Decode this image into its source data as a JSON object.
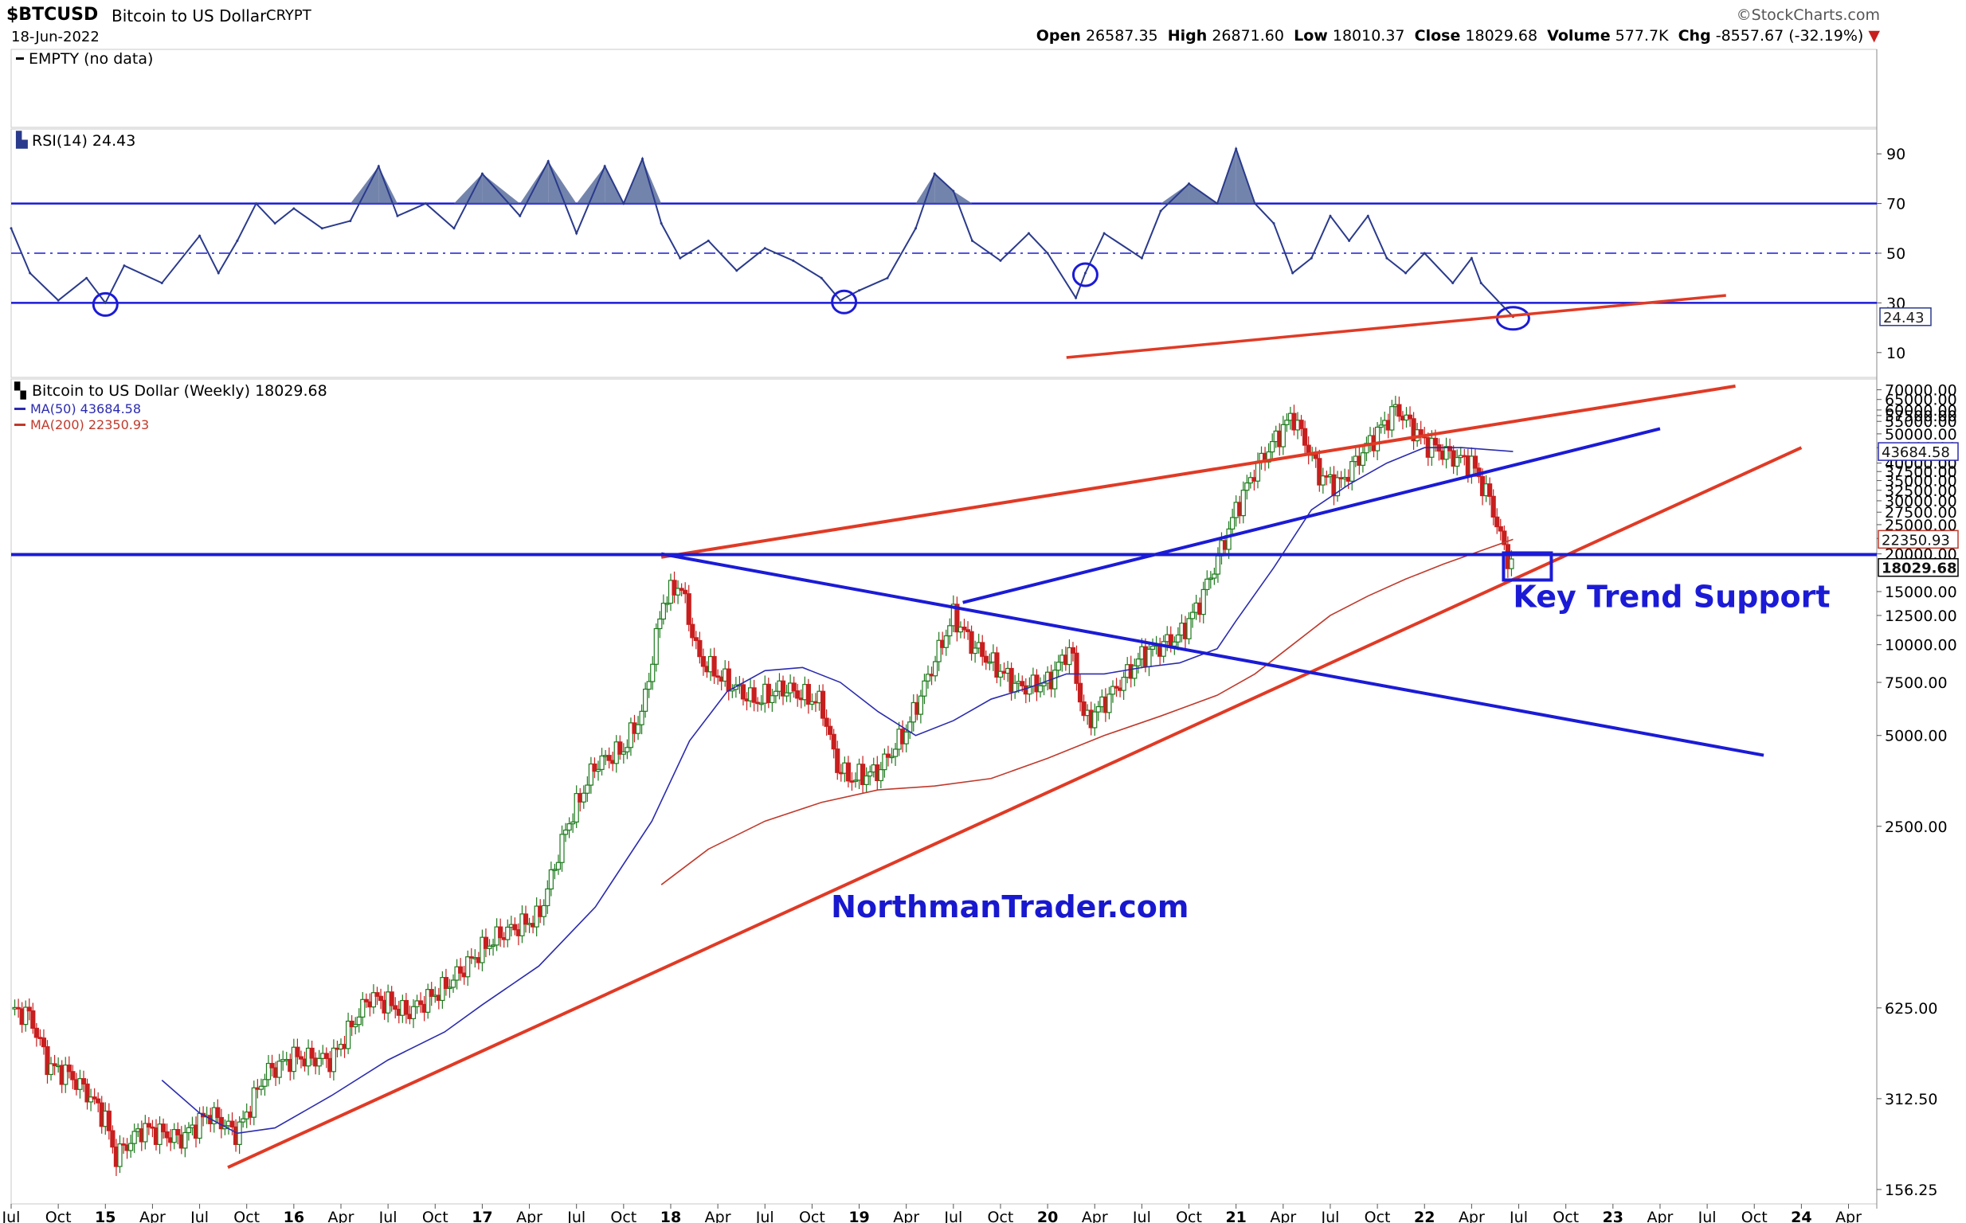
{
  "header": {
    "symbol": "$BTCUSD",
    "name": "Bitcoin to US Dollar",
    "exchange": "CRYPT",
    "date": "18-Jun-2022",
    "source": "©StockCharts.com",
    "open_label": "Open",
    "open": "26587.35",
    "high_label": "High",
    "high": "26871.60",
    "low_label": "Low",
    "low": "18010.37",
    "close_label": "Close",
    "close": "18029.68",
    "volume_label": "Volume",
    "volume": "577.7K",
    "chg_label": "Chg",
    "chg": "-8557.67 (-32.19%)"
  },
  "empty_panel": {
    "legend": "EMPTY (no data)"
  },
  "colors": {
    "price_line": "#1b1bd6",
    "trend_red": "#e03a25",
    "ma50": "#2b2bb0",
    "ma200": "#c0392b",
    "rsi": "#2a3a8c",
    "rsi_fill": "#5a6e9e",
    "up_candle": "#1d7a1d",
    "down_candle": "#c81e1e"
  },
  "annotations": {
    "key_support": "Key Trend Support",
    "watermark": "NorthmanTrader.com"
  },
  "chart_data": [
    {
      "type": "line",
      "panel": "RSI",
      "legend": "RSI(14) 24.43",
      "current_value": "24.43",
      "y_ticks": [
        "90",
        "70",
        "50",
        "30",
        "10"
      ],
      "ylim": [
        0,
        100
      ],
      "reference_lines": [
        70,
        50,
        30
      ],
      "series": [
        {
          "name": "RSI(14)",
          "x": [
            2014.5,
            2014.6,
            2014.75,
            2014.9,
            2015.0,
            2015.1,
            2015.3,
            2015.5,
            2015.6,
            2015.7,
            2015.8,
            2015.9,
            2016.0,
            2016.15,
            2016.3,
            2016.45,
            2016.55,
            2016.7,
            2016.85,
            2017.0,
            2017.2,
            2017.35,
            2017.5,
            2017.65,
            2017.75,
            2017.85,
            2017.95,
            2018.05,
            2018.2,
            2018.35,
            2018.5,
            2018.65,
            2018.8,
            2018.9,
            2019.0,
            2019.15,
            2019.3,
            2019.4,
            2019.5,
            2019.6,
            2019.75,
            2019.9,
            2020.0,
            2020.15,
            2020.2,
            2020.3,
            2020.5,
            2020.6,
            2020.75,
            2020.9,
            2021.0,
            2021.1,
            2021.2,
            2021.3,
            2021.4,
            2021.5,
            2021.6,
            2021.7,
            2021.8,
            2021.9,
            2022.0,
            2022.15,
            2022.25,
            2022.3,
            2022.4,
            2022.47
          ],
          "values": [
            60,
            42,
            31,
            40,
            30,
            45,
            38,
            57,
            42,
            55,
            70,
            62,
            68,
            60,
            63,
            85,
            65,
            70,
            60,
            82,
            65,
            87,
            58,
            85,
            70,
            88,
            62,
            48,
            55,
            43,
            52,
            47,
            40,
            31,
            35,
            40,
            60,
            82,
            75,
            55,
            47,
            58,
            50,
            32,
            42,
            58,
            48,
            67,
            78,
            70,
            92,
            70,
            62,
            42,
            48,
            65,
            55,
            65,
            48,
            42,
            50,
            38,
            48,
            38,
            30,
            24.43
          ]
        }
      ]
    },
    {
      "type": "line",
      "panel": "Price",
      "legend": "Bitcoin to US Dollar (Weekly) 18029.68",
      "scale": "log",
      "y_ticks": [
        "70000.00",
        "65000.00",
        "60000.00",
        "57500.00",
        "55000.00",
        "50000.00",
        "45000.00",
        "40000.00",
        "37500.00",
        "35000.00",
        "32500.00",
        "30000.00",
        "27500.00",
        "25000.00",
        "22500.00",
        "20000.00",
        "15000.00",
        "12500.00",
        "10000.00",
        "7500.00",
        "5000.00",
        "2500.00",
        "625.00",
        "312.50",
        "156.25"
      ],
      "ylim": [
        140,
        76000
      ],
      "x_ticks": [
        "Jul",
        "Oct",
        "15",
        "Apr",
        "Jul",
        "Oct",
        "16",
        "Apr",
        "Jul",
        "Oct",
        "17",
        "Apr",
        "Jul",
        "Oct",
        "18",
        "Apr",
        "Jul",
        "Oct",
        "19",
        "Apr",
        "Jul",
        "Oct",
        "20",
        "Apr",
        "Jul",
        "Oct",
        "21",
        "Apr",
        "Jul",
        "Oct",
        "22",
        "Apr",
        "Jul",
        "Oct",
        "23",
        "Apr",
        "Jul",
        "Oct",
        "24",
        "Apr"
      ],
      "xlim": [
        2014.5,
        2024.4
      ],
      "last_price_label": "18029.68",
      "series": [
        {
          "name": "Bitcoin to US Dollar",
          "x": [
            2014.5,
            2014.6,
            2014.7,
            2014.8,
            2014.9,
            2015.0,
            2015.05,
            2015.2,
            2015.4,
            2015.55,
            2015.7,
            2015.85,
            2016.0,
            2016.2,
            2016.4,
            2016.5,
            2016.6,
            2016.8,
            2017.0,
            2017.1,
            2017.3,
            2017.45,
            2017.6,
            2017.75,
            2017.85,
            2017.96,
            2018.05,
            2018.15,
            2018.3,
            2018.45,
            2018.6,
            2018.8,
            2018.88,
            2018.95,
            2019.1,
            2019.25,
            2019.45,
            2019.5,
            2019.6,
            2019.75,
            2019.85,
            2020.0,
            2020.12,
            2020.2,
            2020.35,
            2020.5,
            2020.7,
            2020.8,
            2020.9,
            2021.0,
            2021.1,
            2021.3,
            2021.45,
            2021.55,
            2021.7,
            2021.85,
            2022.0,
            2022.15,
            2022.25,
            2022.35,
            2022.42,
            2022.47
          ],
          "values": [
            620,
            590,
            400,
            380,
            330,
            270,
            200,
            250,
            230,
            280,
            240,
            380,
            430,
            420,
            680,
            650,
            600,
            730,
            980,
            1100,
            1250,
            2500,
            4000,
            4500,
            6000,
            14000,
            16000,
            9000,
            7500,
            6500,
            7200,
            6400,
            4000,
            3600,
            3800,
            5200,
            10500,
            12500,
            10000,
            8200,
            7200,
            7500,
            9800,
            5500,
            7000,
            9200,
            10700,
            13500,
            19000,
            28000,
            38000,
            58000,
            36000,
            34000,
            46000,
            61000,
            47000,
            42000,
            40000,
            30000,
            21000,
            18029.68
          ]
        },
        {
          "name": "MA(50)",
          "legend": "MA(50) 43684.58",
          "value_label": "43684.58",
          "x": [
            2015.3,
            2015.5,
            2015.7,
            2015.9,
            2016.2,
            2016.5,
            2016.8,
            2017.0,
            2017.3,
            2017.6,
            2017.9,
            2018.1,
            2018.3,
            2018.5,
            2018.7,
            2018.9,
            2019.1,
            2019.3,
            2019.5,
            2019.7,
            2019.9,
            2020.1,
            2020.3,
            2020.5,
            2020.7,
            2020.9,
            2021.0,
            2021.2,
            2021.4,
            2021.6,
            2021.8,
            2022.0,
            2022.2,
            2022.47
          ],
          "values": [
            360,
            280,
            240,
            250,
            320,
            420,
            520,
            640,
            860,
            1350,
            2600,
            4800,
            7000,
            8200,
            8400,
            7500,
            6000,
            5000,
            5600,
            6600,
            7200,
            8000,
            8000,
            8400,
            8700,
            9700,
            12000,
            18000,
            28000,
            34000,
            40000,
            45000,
            45000,
            43684.58
          ]
        },
        {
          "name": "MA(200)",
          "legend": "MA(200) 22350.93",
          "value_label": "22350.93",
          "x": [
            2017.95,
            2018.2,
            2018.5,
            2018.8,
            2019.1,
            2019.4,
            2019.7,
            2020.0,
            2020.3,
            2020.6,
            2020.9,
            2021.1,
            2021.3,
            2021.5,
            2021.7,
            2021.9,
            2022.1,
            2022.3,
            2022.47
          ],
          "values": [
            1600,
            2100,
            2600,
            3000,
            3300,
            3400,
            3600,
            4200,
            5000,
            5800,
            6800,
            8000,
            10000,
            12500,
            14500,
            16500,
            18500,
            20500,
            22350.93
          ]
        }
      ]
    },
    {
      "type": "line",
      "panel": "Trendlines",
      "series": [
        {
          "name": "upper-red",
          "x": [
            2017.95,
            2023.65
          ],
          "values": [
            19500,
            72000
          ]
        },
        {
          "name": "lower-red",
          "x": [
            2015.65,
            2024.0
          ],
          "values": [
            185,
            45000
          ]
        },
        {
          "name": "blue-horizontal",
          "x": [
            2014.5,
            2024.4
          ],
          "values": [
            19900,
            19900
          ]
        },
        {
          "name": "blue-down",
          "x": [
            2017.95,
            2023.8
          ],
          "values": [
            20000,
            4300
          ]
        },
        {
          "name": "blue-up",
          "x": [
            2019.55,
            2023.25
          ],
          "values": [
            13800,
            52000
          ]
        }
      ],
      "circled_rsi_lows_x": [
        2015.0,
        2018.92,
        2020.2,
        2022.47
      ]
    }
  ]
}
